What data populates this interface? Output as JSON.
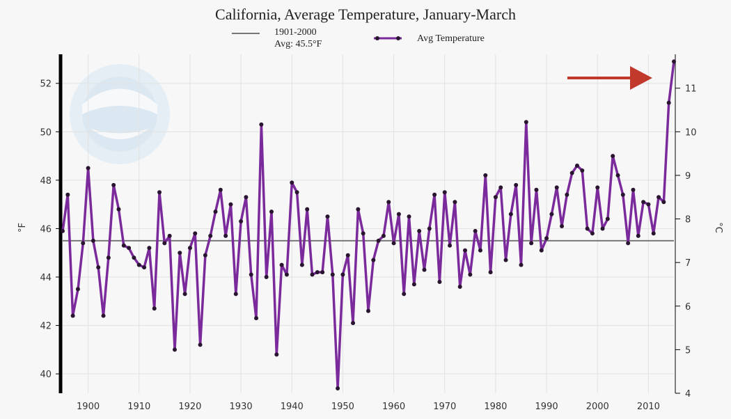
{
  "chart_data": {
    "type": "line",
    "title": "California, Average Temperature, January-March",
    "ylabel_left": "°F",
    "ylabel_right": "°C",
    "xlim": [
      1895,
      2015
    ],
    "ylim": [
      39.2,
      53.2
    ],
    "y_ticks_f": [
      "40",
      "42",
      "44",
      "46",
      "48",
      "50",
      "52"
    ],
    "y_ticks_c": [
      "4",
      "5",
      "6",
      "7",
      "8",
      "9",
      "10",
      "11"
    ],
    "x_ticks": [
      "1900",
      "1910",
      "1920",
      "1930",
      "1940",
      "1950",
      "1960",
      "1970",
      "1980",
      "1990",
      "2000",
      "2010"
    ],
    "baseline": {
      "label_line1": "1901-2000",
      "label_line2": "Avg: 45.5°F",
      "value": 45.5,
      "color": "#777777"
    },
    "series": [
      {
        "name": "Avg Temperature",
        "color": "#7b2a9c",
        "x": [
          1895,
          1896,
          1897,
          1898,
          1899,
          1900,
          1901,
          1902,
          1903,
          1904,
          1905,
          1906,
          1907,
          1908,
          1909,
          1910,
          1911,
          1912,
          1913,
          1914,
          1915,
          1916,
          1917,
          1918,
          1919,
          1920,
          1921,
          1922,
          1923,
          1924,
          1925,
          1926,
          1927,
          1928,
          1929,
          1930,
          1931,
          1932,
          1933,
          1934,
          1935,
          1936,
          1937,
          1938,
          1939,
          1940,
          1941,
          1942,
          1943,
          1944,
          1945,
          1946,
          1947,
          1948,
          1949,
          1950,
          1951,
          1952,
          1953,
          1954,
          1955,
          1956,
          1957,
          1958,
          1959,
          1960,
          1961,
          1962,
          1963,
          1964,
          1965,
          1966,
          1967,
          1968,
          1969,
          1970,
          1971,
          1972,
          1973,
          1974,
          1975,
          1976,
          1977,
          1978,
          1979,
          1980,
          1981,
          1982,
          1983,
          1984,
          1985,
          1986,
          1987,
          1988,
          1989,
          1990,
          1991,
          1992,
          1993,
          1994,
          1995,
          1996,
          1997,
          1998,
          1999,
          2000,
          2001,
          2002,
          2003,
          2004,
          2005,
          2006,
          2007,
          2008,
          2009,
          2010,
          2011,
          2012,
          2013,
          2014,
          2015
        ],
        "values": [
          45.9,
          47.4,
          42.4,
          43.5,
          45.4,
          48.5,
          45.5,
          44.4,
          42.4,
          44.8,
          47.8,
          46.8,
          45.3,
          45.2,
          44.8,
          44.5,
          44.4,
          45.2,
          42.7,
          47.5,
          45.4,
          45.7,
          41.0,
          45.0,
          43.3,
          45.2,
          45.8,
          41.2,
          44.9,
          45.7,
          46.7,
          47.6,
          45.7,
          47.0,
          43.3,
          46.3,
          47.3,
          44.1,
          42.3,
          50.3,
          44.0,
          46.7,
          40.8,
          44.5,
          44.1,
          47.9,
          47.5,
          44.5,
          46.8,
          44.1,
          44.2,
          44.2,
          46.5,
          44.1,
          39.4,
          44.1,
          44.9,
          42.1,
          46.8,
          45.8,
          42.6,
          44.7,
          45.5,
          45.7,
          47.1,
          45.4,
          46.6,
          43.3,
          46.5,
          43.7,
          45.9,
          44.3,
          46.0,
          47.4,
          43.8,
          47.5,
          45.3,
          47.1,
          43.6,
          45.1,
          44.1,
          45.9,
          45.1,
          48.2,
          44.2,
          47.3,
          47.7,
          44.7,
          46.6,
          47.8,
          44.5,
          50.4,
          45.4,
          47.6,
          45.1,
          45.6,
          46.6,
          47.7,
          46.1,
          47.4,
          48.3,
          48.6,
          48.4,
          46.0,
          45.8,
          47.7,
          46.0,
          46.4,
          49.0,
          48.2,
          47.4,
          45.4,
          47.6,
          45.7,
          47.1,
          47.0,
          45.8,
          47.3,
          47.1,
          51.2,
          52.9
        ]
      }
    ],
    "grid": true,
    "legend": "top-center"
  }
}
